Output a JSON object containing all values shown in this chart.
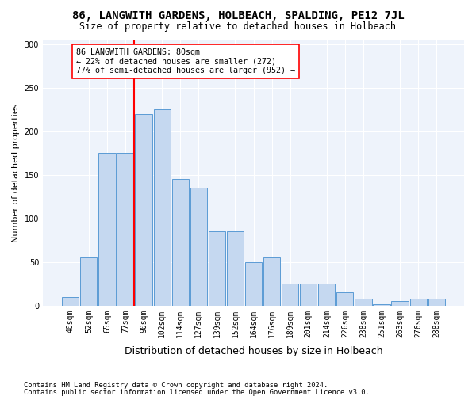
{
  "title": "86, LANGWITH GARDENS, HOLBEACH, SPALDING, PE12 7JL",
  "subtitle": "Size of property relative to detached houses in Holbeach",
  "xlabel": "Distribution of detached houses by size in Holbeach",
  "ylabel": "Number of detached properties",
  "bin_labels": [
    "40sqm",
    "52sqm",
    "65sqm",
    "77sqm",
    "90sqm",
    "102sqm",
    "114sqm",
    "127sqm",
    "139sqm",
    "152sqm",
    "164sqm",
    "176sqm",
    "189sqm",
    "201sqm",
    "214sqm",
    "226sqm",
    "238sqm",
    "251sqm",
    "263sqm",
    "276sqm",
    "288sqm"
  ],
  "bar_heights": [
    10,
    55,
    175,
    175,
    220,
    225,
    145,
    135,
    85,
    85,
    50,
    55,
    25,
    25,
    25,
    15,
    8,
    2,
    5,
    8,
    8
  ],
  "bar_color": "#c5d8f0",
  "bar_edge_color": "#5b9bd5",
  "vline_x_idx": 3,
  "vline_color": "red",
  "annotation_text": "86 LANGWITH GARDENS: 80sqm\n← 22% of detached houses are smaller (272)\n77% of semi-detached houses are larger (952) →",
  "annotation_box_color": "white",
  "annotation_box_edge_color": "red",
  "ylim": [
    0,
    305
  ],
  "yticks": [
    0,
    50,
    100,
    150,
    200,
    250,
    300
  ],
  "footer_line1": "Contains HM Land Registry data © Crown copyright and database right 2024.",
  "footer_line2": "Contains public sector information licensed under the Open Government Licence v3.0.",
  "background_color": "#eef3fb",
  "bin_width": 13
}
